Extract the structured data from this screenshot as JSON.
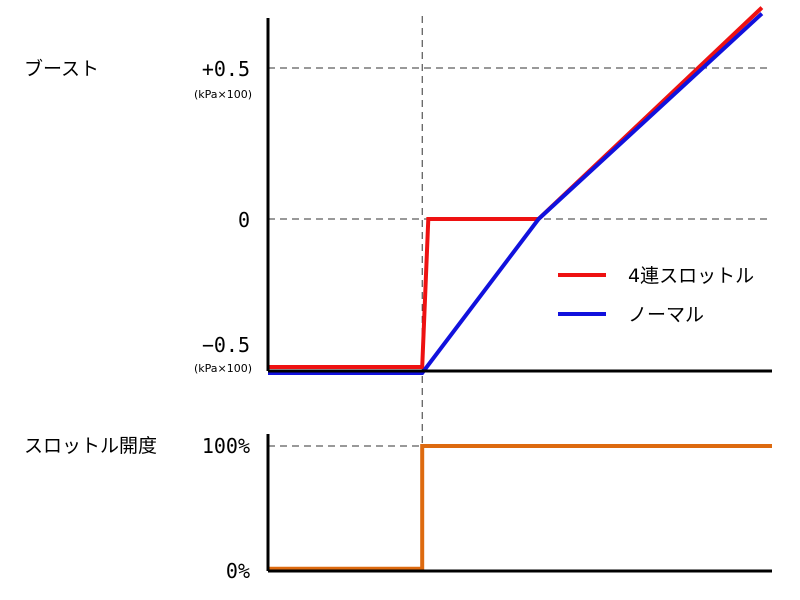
{
  "chart_data": [
    {
      "type": "line",
      "title": "ブースト",
      "xlabel": "",
      "ylabel": "ブースト",
      "ylim": [
        -0.5,
        0.5
      ],
      "yticks": [
        {
          "value": 0.5,
          "label": "+0.5",
          "unit": "(kPa×100)"
        },
        {
          "value": 0,
          "label": "0",
          "unit": ""
        },
        {
          "value": -0.5,
          "label": "−0.5",
          "unit": "(kPa×100)"
        }
      ],
      "grid": true,
      "legend": "right",
      "series": [
        {
          "name": "4連スロットル",
          "color": "#ee1111",
          "points": [
            [
              0,
              -0.49
            ],
            [
              0.306,
              -0.49
            ],
            [
              0.318,
              0
            ],
            [
              0.537,
              0
            ],
            [
              0.98,
              0.7
            ]
          ]
        },
        {
          "name": "ノーマル",
          "color": "#1111dd",
          "points": [
            [
              0,
              -0.51
            ],
            [
              0.306,
              -0.51
            ],
            [
              0.537,
              0
            ],
            [
              0.98,
              0.68
            ]
          ]
        }
      ]
    },
    {
      "type": "line",
      "title": "スロットル開度",
      "xlabel": "",
      "ylabel": "スロットル開度",
      "ylim": [
        0,
        100
      ],
      "yticks": [
        {
          "value": 100,
          "label": "100%"
        },
        {
          "value": 0,
          "label": "0%"
        }
      ],
      "grid": true,
      "series": [
        {
          "color": "#dd6a10",
          "points": [
            [
              0,
              1
            ],
            [
              0.306,
              1
            ],
            [
              0.306,
              100
            ],
            [
              1,
              100
            ]
          ]
        }
      ]
    }
  ]
}
